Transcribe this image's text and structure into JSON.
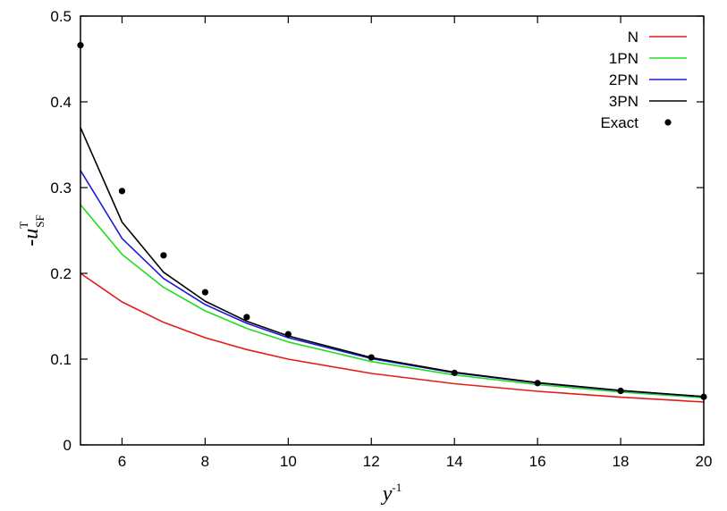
{
  "chart_data": {
    "type": "line",
    "xlabel": {
      "base": "y",
      "superscript": "-1"
    },
    "ylabel": {
      "prefix": "-",
      "base": "u",
      "superscript": "T",
      "subscript": "SF"
    },
    "xlim": [
      5,
      20
    ],
    "ylim": [
      0,
      0.5
    ],
    "xticks": [
      6,
      8,
      10,
      12,
      14,
      16,
      18,
      20
    ],
    "yticks": [
      0,
      0.1,
      0.2,
      0.3,
      0.4,
      0.5
    ],
    "grid": false,
    "legend_position": "top-right",
    "series": [
      {
        "name": "N",
        "kind": "line",
        "color": "#e41a1c",
        "x": [
          5,
          6,
          7,
          8,
          9,
          10,
          12,
          14,
          16,
          18,
          20
        ],
        "y": [
          0.2,
          0.1667,
          0.1429,
          0.125,
          0.1111,
          0.1,
          0.0833,
          0.0714,
          0.0625,
          0.0556,
          0.05
        ]
      },
      {
        "name": "1PN",
        "kind": "line",
        "color": "#22dd22",
        "x": [
          5,
          6,
          7,
          8,
          9,
          10,
          12,
          14,
          16,
          18,
          20
        ],
        "y": [
          0.28,
          0.2222,
          0.1837,
          0.1563,
          0.1358,
          0.12,
          0.0972,
          0.0816,
          0.0703,
          0.0617,
          0.055
        ]
      },
      {
        "name": "2PN",
        "kind": "line",
        "color": "#1a1adc",
        "x": [
          5,
          6,
          7,
          8,
          9,
          10,
          12,
          14,
          16,
          18,
          20
        ],
        "y": [
          0.32,
          0.2407,
          0.1941,
          0.1636,
          0.1418,
          0.125,
          0.1006,
          0.0841,
          0.0722,
          0.0632,
          0.0562
        ]
      },
      {
        "name": "3PN",
        "kind": "line",
        "color": "#000000",
        "x": [
          5,
          6,
          7,
          8,
          9,
          10,
          12,
          14,
          16,
          18,
          20
        ],
        "y": [
          0.37,
          0.2598,
          0.2014,
          0.1676,
          0.1442,
          0.1271,
          0.1018,
          0.0847,
          0.0726,
          0.0635,
          0.0564
        ]
      },
      {
        "name": "Exact",
        "kind": "points",
        "color": "#000000",
        "x": [
          5,
          6,
          7,
          8,
          9,
          10,
          12,
          14,
          16,
          18,
          20
        ],
        "y": [
          0.466,
          0.296,
          0.221,
          0.178,
          0.149,
          0.129,
          0.102,
          0.084,
          0.072,
          0.063,
          0.056
        ]
      }
    ]
  }
}
